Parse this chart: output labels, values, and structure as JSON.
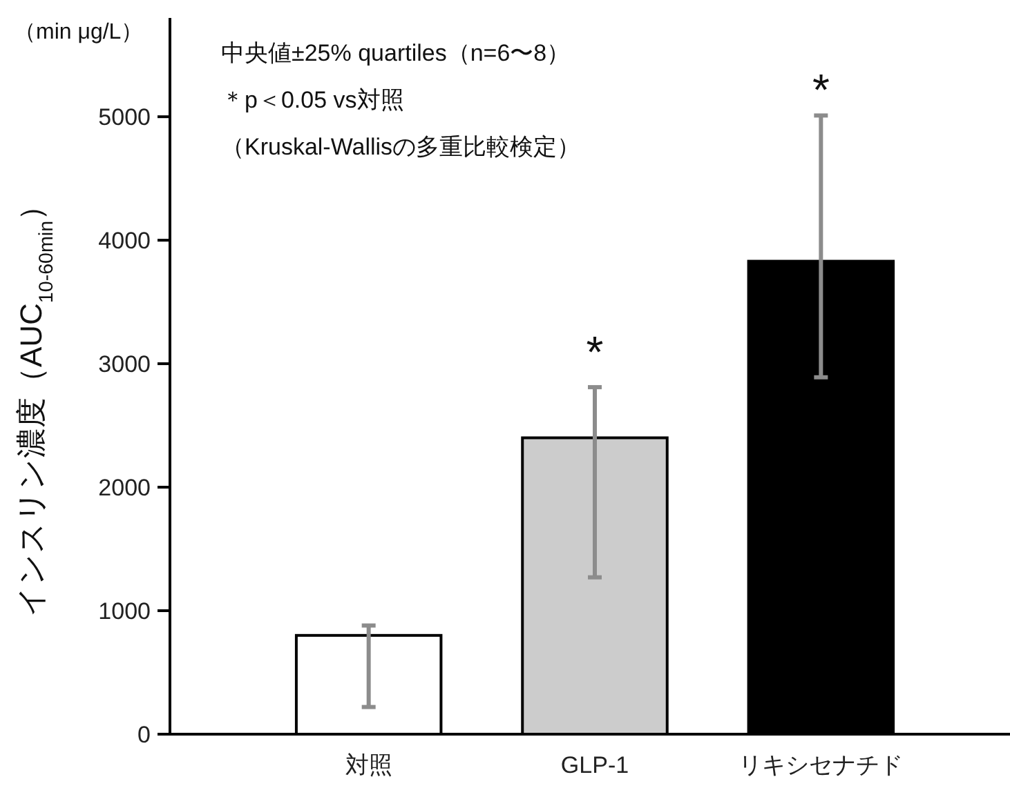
{
  "chart_data": {
    "type": "bar",
    "ylabel": "インスリン濃度（AUC$_{10-60min}$）",
    "categories": [
      "対照",
      "GLP-1",
      "リキシセナチド"
    ],
    "values": [
      800,
      2400,
      3830
    ],
    "colors": [
      "#ffffff",
      "#cccccc",
      "#000000"
    ],
    "errors": [
      [
        220,
        880
      ],
      [
        1270,
        2810
      ],
      [
        2890,
        5010
      ]
    ],
    "ylim": [
      0,
      5800
    ],
    "yticks": [
      0,
      1000,
      2000,
      3000,
      4000,
      5000
    ],
    "grid": false,
    "annotations": [
      "（min μg/L）",
      "中央値±25% quartiles（n=6〜8）",
      "＊p＜0.05 vs対照",
      "（Kruskal-Wallisの多重比較検定）",
      "*",
      "*"
    ]
  }
}
